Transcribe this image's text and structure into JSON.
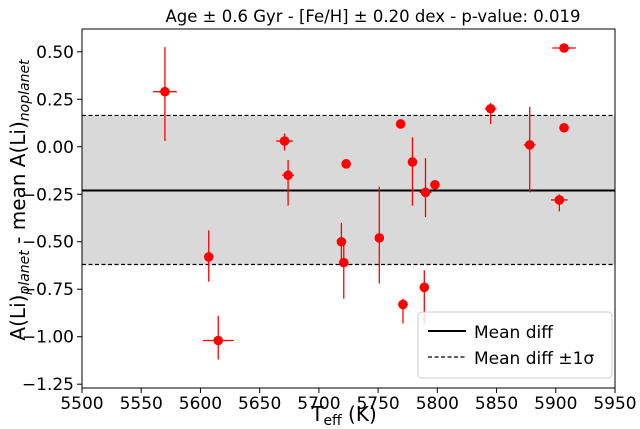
{
  "chart_data": {
    "type": "scatter",
    "title": "Age ± 0.6 Gyr - [Fe/H] ± 0.20 dex - p-value: 0.019",
    "xlabel_main": "T",
    "xlabel_sub": "eff",
    "xlabel_unit": " (K)",
    "ylabel_parts": {
      "a": "A(Li)",
      "sub1": "planet",
      "b": " - mean A(Li)",
      "sub2": "noplanet"
    },
    "xlim": [
      5500,
      5950
    ],
    "ylim": [
      -1.27,
      0.62
    ],
    "xticks": [
      5500,
      5550,
      5600,
      5650,
      5700,
      5750,
      5800,
      5850,
      5900,
      5950
    ],
    "xtick_labels": [
      "5500",
      "5550",
      "5600",
      "5650",
      "5700",
      "5750",
      "5800",
      "5850",
      "5900",
      "5950"
    ],
    "yticks": [
      0.5,
      0.25,
      0.0,
      -0.25,
      -0.5,
      -0.75,
      -1.0,
      -1.25
    ],
    "ytick_labels": [
      "0.50",
      "0.25",
      "0.00",
      "−0.25",
      "−0.50",
      "−0.75",
      "−1.00",
      "−1.25"
    ],
    "mean_diff": -0.23,
    "band": [
      -0.62,
      0.165
    ],
    "point_color": "#ff0000",
    "band_color": "#d9d9d9",
    "legend": {
      "position": "lower-right",
      "entries": [
        {
          "label": "Mean diff",
          "style": "solid"
        },
        {
          "label": "Mean diff ±1σ",
          "style": "dashed"
        }
      ]
    },
    "points": [
      {
        "x": 5570,
        "y": 0.29,
        "xerr": 10,
        "yerr_lo": 0.26,
        "yerr_hi": 0.235
      },
      {
        "x": 5607,
        "y": -0.58,
        "xerr": 3,
        "yerr_lo": 0.13,
        "yerr_hi": 0.14
      },
      {
        "x": 5615,
        "y": -1.02,
        "xerr": 13,
        "yerr_lo": 0.1,
        "yerr_hi": 0.13
      },
      {
        "x": 5671,
        "y": 0.03,
        "xerr": 7,
        "yerr_lo": 0.05,
        "yerr_hi": 0.04
      },
      {
        "x": 5674,
        "y": -0.15,
        "xerr": 5,
        "yerr_lo": 0.16,
        "yerr_hi": 0.08
      },
      {
        "x": 5719,
        "y": -0.5,
        "xerr": 3,
        "yerr_lo": 0.11,
        "yerr_hi": 0.1
      },
      {
        "x": 5721,
        "y": -0.61,
        "xerr": 4,
        "yerr_lo": 0.19,
        "yerr_hi": 0.12
      },
      {
        "x": 5723,
        "y": -0.09,
        "xerr": 3,
        "yerr_lo": 0.015,
        "yerr_hi": 0.015
      },
      {
        "x": 5751,
        "y": -0.48,
        "xerr": 3,
        "yerr_lo": 0.24,
        "yerr_hi": 0.27
      },
      {
        "x": 5769,
        "y": 0.12,
        "xerr": 3,
        "yerr_lo": 0.01,
        "yerr_hi": 0.01
      },
      {
        "x": 5771,
        "y": -0.83,
        "xerr": 4,
        "yerr_lo": 0.1,
        "yerr_hi": 0.03
      },
      {
        "x": 5779,
        "y": -0.08,
        "xerr": 3,
        "yerr_lo": 0.23,
        "yerr_hi": 0.13
      },
      {
        "x": 5789,
        "y": -0.74,
        "xerr": 3,
        "yerr_lo": 0.19,
        "yerr_hi": 0.09
      },
      {
        "x": 5790,
        "y": -0.24,
        "xerr": 5,
        "yerr_lo": 0.13,
        "yerr_hi": 0.18
      },
      {
        "x": 5798,
        "y": -0.2,
        "xerr": 3,
        "yerr_lo": 0.015,
        "yerr_hi": 0.015
      },
      {
        "x": 5845,
        "y": 0.2,
        "xerr": 5,
        "yerr_lo": 0.08,
        "yerr_hi": 0.03
      },
      {
        "x": 5878,
        "y": 0.01,
        "xerr": 5,
        "yerr_lo": 0.25,
        "yerr_hi": 0.2
      },
      {
        "x": 5903,
        "y": -0.28,
        "xerr": 7,
        "yerr_lo": 0.06,
        "yerr_hi": 0.03
      },
      {
        "x": 5907,
        "y": 0.1,
        "xerr": 3,
        "yerr_lo": 0.015,
        "yerr_hi": 0.015
      },
      {
        "x": 5907,
        "y": 0.52,
        "xerr": 10,
        "yerr_lo": 0.015,
        "yerr_hi": 0.015
      }
    ]
  }
}
